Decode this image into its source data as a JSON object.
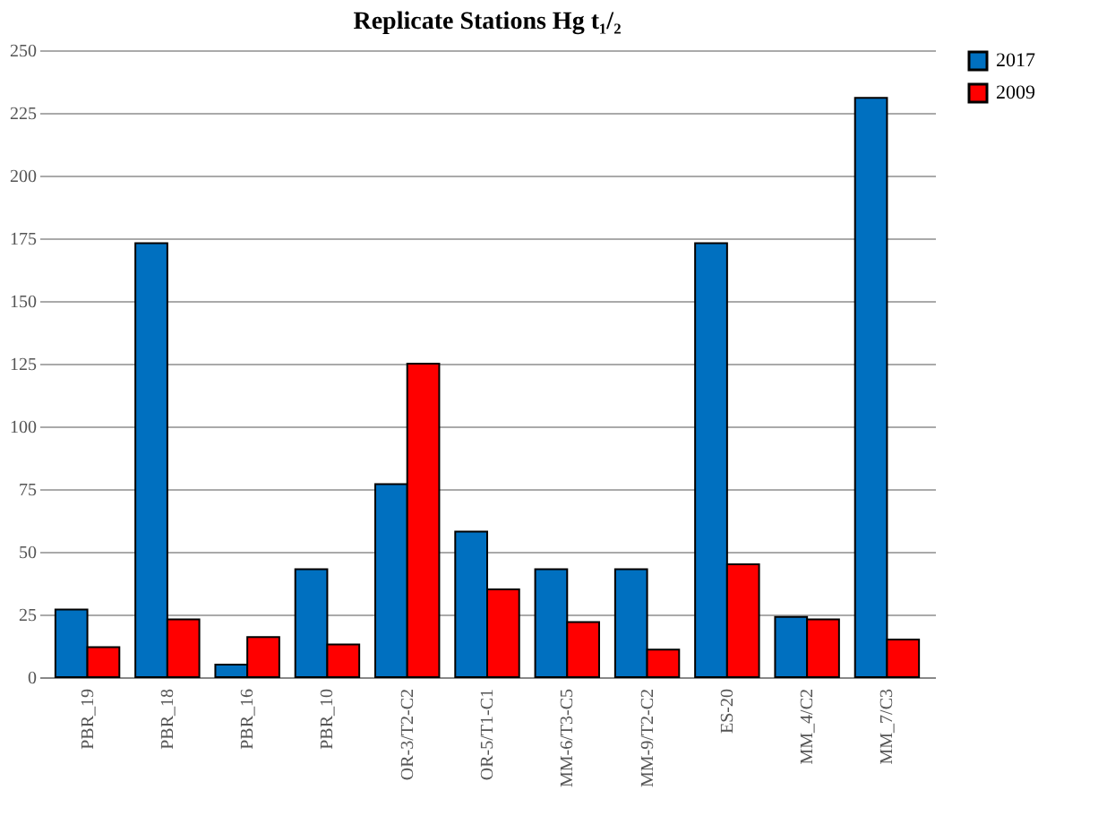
{
  "chart_data": {
    "type": "bar",
    "title": "Replicate Stations Hg t₁/₂",
    "categories": [
      "PBR_19",
      "PBR_18",
      "PBR_16",
      "PBR_10",
      "OR-3/T2-C2",
      "OR-5/T1-C1",
      "MM-6/T3-C5",
      "MM-9/T2-C2",
      "ES-20",
      "MM_4/C2",
      "MM_7/C3"
    ],
    "series": [
      {
        "name": "2017",
        "color": "#0070c0",
        "values": [
          27,
          173,
          5,
          43,
          77,
          58,
          43,
          43,
          173,
          24,
          231
        ]
      },
      {
        "name": "2009",
        "color": "#ff0000",
        "values": [
          12,
          23,
          16,
          13,
          125,
          35,
          22,
          11,
          45,
          23,
          15
        ]
      }
    ],
    "ylim": [
      0,
      250
    ],
    "yticks": [
      0,
      25,
      50,
      75,
      100,
      125,
      150,
      175,
      200,
      225,
      250
    ],
    "grid": "y",
    "legend": "right"
  }
}
